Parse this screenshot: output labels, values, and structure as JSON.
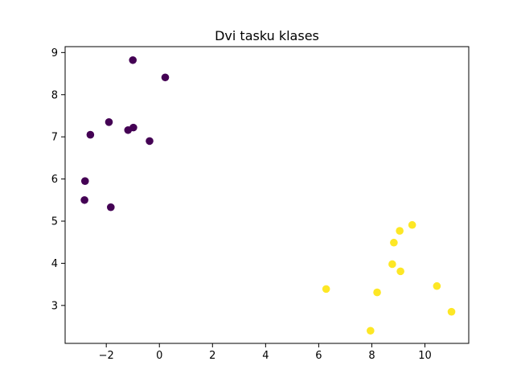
{
  "chart_data": {
    "type": "scatter",
    "title": "Dvi tasku klases",
    "xlabel": "",
    "ylabel": "",
    "xlim": [
      -3.55,
      11.65
    ],
    "ylim": [
      2.1,
      9.14
    ],
    "xticks": [
      -2,
      0,
      2,
      4,
      6,
      8,
      10
    ],
    "yticks": [
      3,
      4,
      5,
      6,
      7,
      8,
      9
    ],
    "xtick_labels": [
      "−2",
      "0",
      "2",
      "4",
      "6",
      "8",
      "10"
    ],
    "ytick_labels": [
      "3",
      "4",
      "5",
      "6",
      "7",
      "8",
      "9"
    ],
    "grid": false,
    "legend": "none",
    "series": [
      {
        "color": "#440154",
        "points": [
          [
            -1.0,
            8.82
          ],
          [
            0.22,
            8.41
          ],
          [
            -1.9,
            7.35
          ],
          [
            -0.98,
            7.22
          ],
          [
            -1.18,
            7.16
          ],
          [
            -2.6,
            7.05
          ],
          [
            -0.37,
            6.9
          ],
          [
            -2.8,
            5.95
          ],
          [
            -2.82,
            5.5
          ],
          [
            -1.83,
            5.33
          ]
        ]
      },
      {
        "color": "#fde725",
        "points": [
          [
            9.52,
            4.91
          ],
          [
            9.05,
            4.77
          ],
          [
            8.83,
            4.49
          ],
          [
            8.77,
            3.98
          ],
          [
            9.08,
            3.81
          ],
          [
            10.45,
            3.46
          ],
          [
            6.28,
            3.39
          ],
          [
            8.2,
            3.31
          ],
          [
            11.0,
            2.85
          ],
          [
            7.95,
            2.4
          ]
        ]
      }
    ]
  }
}
